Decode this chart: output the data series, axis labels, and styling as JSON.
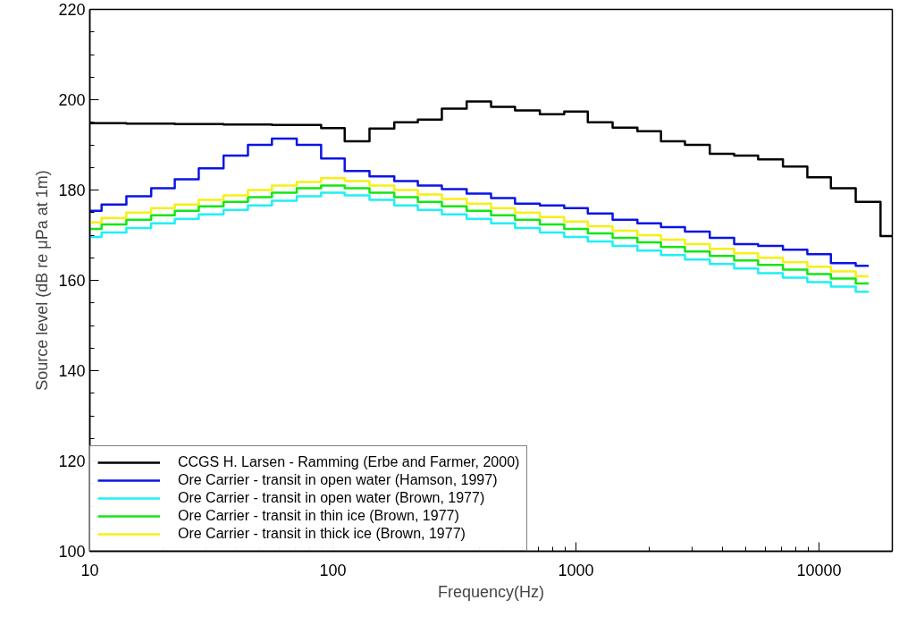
{
  "chart_data": {
    "type": "step",
    "xlabel": "Frequency(Hz)",
    "ylabel": "Source level (dB re μPa at 1m)",
    "log": "x",
    "x": [
      10,
      12.5,
      16,
      20,
      25,
      31.5,
      40,
      50,
      63,
      80,
      100,
      125,
      160,
      200,
      250,
      315,
      400,
      500,
      630,
      800,
      1000,
      1250,
      1600,
      2000,
      2500,
      3150,
      4000,
      5000,
      6300,
      8000,
      10000,
      12500,
      16000
    ],
    "xlim": [
      10,
      20000
    ],
    "xticks": [
      10,
      100,
      1000,
      10000
    ],
    "ylim": [
      100,
      220
    ],
    "yticks": [
      100,
      120,
      140,
      160,
      180,
      200,
      220
    ],
    "grid": false,
    "legend": "bottom left",
    "marker": "none",
    "line_style": "solid",
    "series": [
      {
        "name": "CCGS H. Larsen - Ramming (Erbe and Farmer, 2000)",
        "color": "#000000",
        "x": [
          10,
          12.5,
          16,
          20,
          25,
          31.5,
          40,
          50,
          63,
          80,
          100,
          125,
          160,
          200,
          250,
          315,
          400,
          500,
          630,
          800,
          1000,
          1250,
          1600,
          2000,
          2500,
          3150,
          4000,
          5000,
          6300,
          8000,
          10000,
          12500,
          16000,
          20000
        ],
        "values": [
          194.8,
          194.8,
          194.7,
          194.7,
          194.6,
          194.6,
          194.5,
          194.5,
          194.4,
          194.4,
          193.7,
          190.8,
          193.6,
          195,
          195.6,
          198,
          199.6,
          198.4,
          197.6,
          196.8,
          197.4,
          195,
          193.8,
          193,
          190.8,
          190,
          188,
          187.6,
          186.8,
          185.2,
          182.8,
          180.4,
          177.4,
          169.8
        ]
      },
      {
        "name": "Ore Carrier - transit in open water (Hamson, 1997)",
        "color": "#0a14e6",
        "values": [
          175.4,
          176.8,
          178.6,
          180.4,
          182.4,
          184.8,
          187.6,
          190,
          191.4,
          190,
          187,
          184.2,
          183,
          182,
          181,
          180.2,
          179.2,
          178.2,
          177,
          176.6,
          176,
          174.8,
          173.4,
          172.6,
          171.8,
          170.8,
          169.4,
          168,
          167.6,
          166.8,
          165.8,
          163.8,
          163.2
        ]
      },
      {
        "name": "Ore Carrier - transit in open water (Brown, 1977)",
        "color": "#1ef0f5",
        "values": [
          169.6,
          170.6,
          171.6,
          172.6,
          173.6,
          174.6,
          175.6,
          176.6,
          177.6,
          178.6,
          179.4,
          178.8,
          177.8,
          176.6,
          175.6,
          174.6,
          173.6,
          172.6,
          171.6,
          170.6,
          169.6,
          168.6,
          167.6,
          166.6,
          165.6,
          164.6,
          163.6,
          162.6,
          161.6,
          160.6,
          159.6,
          158.6,
          157.5
        ]
      },
      {
        "name": "Ore Carrier - transit in thin ice (Brown, 1977)",
        "color": "#14e614",
        "values": [
          171.4,
          172.4,
          173.4,
          174.4,
          175.4,
          176.4,
          177.4,
          178.4,
          179.4,
          180.4,
          181,
          180.4,
          179.4,
          178.4,
          177.4,
          176.4,
          175.4,
          174.4,
          173.4,
          172.4,
          171.4,
          170.4,
          169.4,
          168.4,
          167.4,
          166.4,
          165.4,
          164.4,
          163.4,
          162.4,
          161.4,
          160.4,
          159.3
        ]
      },
      {
        "name": "Ore Carrier - transit in thick ice (Brown, 1977)",
        "color": "#f5f014",
        "values": [
          172.8,
          173.8,
          175,
          176,
          176.8,
          177.8,
          178.8,
          180,
          181,
          181.8,
          182.6,
          182,
          181,
          180,
          179,
          178,
          177,
          176,
          175,
          174,
          173,
          172,
          171,
          170,
          169,
          168,
          167,
          166,
          165,
          164,
          163,
          162,
          160.9
        ]
      }
    ]
  }
}
